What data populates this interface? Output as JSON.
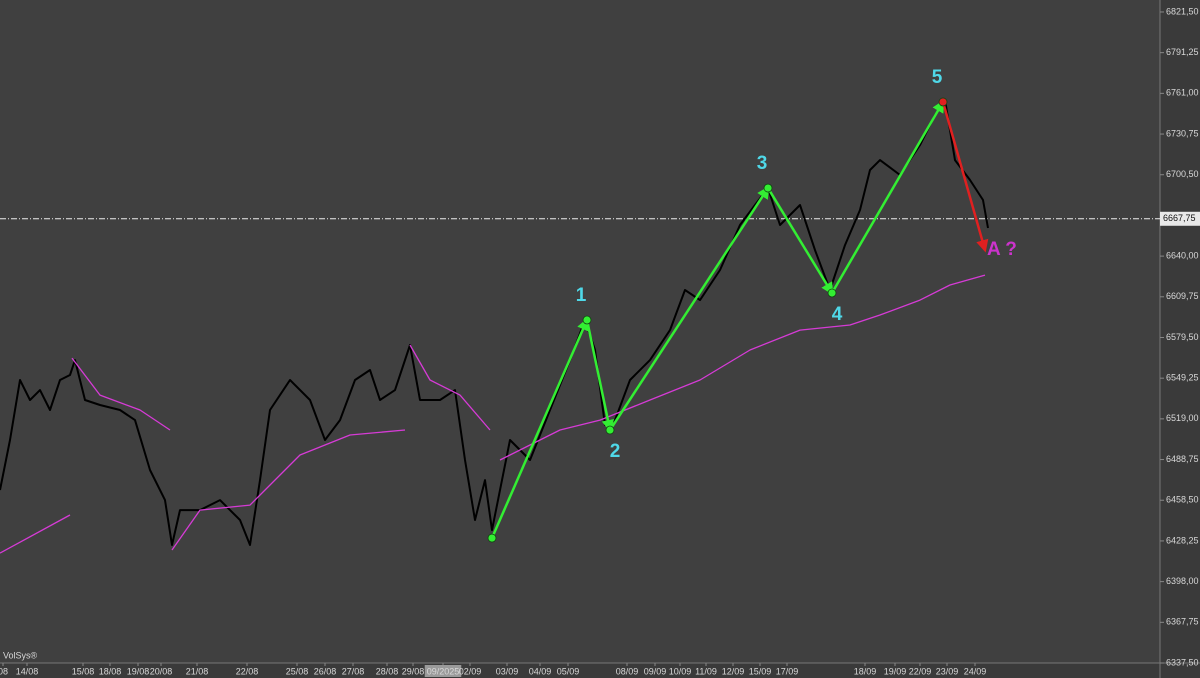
{
  "chart_data": {
    "type": "line",
    "brand": "VolSys®",
    "xlim": [
      0,
      1160
    ],
    "ylim": [
      6337.5,
      6830.4
    ],
    "yticks": [
      {
        "value": 6337.5,
        "label": "6337,50"
      },
      {
        "value": 6367.75,
        "label": "6367,75"
      },
      {
        "value": 6398,
        "label": "6398,00"
      },
      {
        "value": 6428.25,
        "label": "6428,25"
      },
      {
        "value": 6458.5,
        "label": "6458,50"
      },
      {
        "value": 6488.75,
        "label": "6488,75"
      },
      {
        "value": 6519,
        "label": "6519,00"
      },
      {
        "value": 6549.25,
        "label": "6549,25"
      },
      {
        "value": 6579.5,
        "label": "6579,50"
      },
      {
        "value": 6609.75,
        "label": "6609,75"
      },
      {
        "value": 6640,
        "label": "6640,00"
      },
      {
        "value": 6700.5,
        "label": "6700,50"
      },
      {
        "value": 6730.75,
        "label": "6730,75"
      },
      {
        "value": 6761,
        "label": "6761,00"
      },
      {
        "value": 6791.25,
        "label": "6791,25"
      },
      {
        "value": 6821.5,
        "label": "6821,50"
      }
    ],
    "xticks": [
      {
        "value": 3,
        "label": "08"
      },
      {
        "value": 27,
        "label": "14/08"
      },
      {
        "value": 83,
        "label": "15/08"
      },
      {
        "value": 110,
        "label": "18/08"
      },
      {
        "value": 138,
        "label": "19/08"
      },
      {
        "value": 161,
        "label": "20/08"
      },
      {
        "value": 197,
        "label": "21/08"
      },
      {
        "value": 247,
        "label": "22/08"
      },
      {
        "value": 297,
        "label": "25/08"
      },
      {
        "value": 325,
        "label": "26/08"
      },
      {
        "value": 353,
        "label": "27/08"
      },
      {
        "value": 387,
        "label": "28/08"
      },
      {
        "value": 413,
        "label": "29/08"
      },
      {
        "value": 443,
        "label": "09/2025"
      },
      {
        "value": 470,
        "label": "02/09"
      },
      {
        "value": 507,
        "label": "03/09"
      },
      {
        "value": 540,
        "label": "04/09"
      },
      {
        "value": 568,
        "label": "05/09"
      },
      {
        "value": 627,
        "label": "08/09"
      },
      {
        "value": 655,
        "label": "09/09"
      },
      {
        "value": 680,
        "label": "10/09"
      },
      {
        "value": 706,
        "label": "11/09"
      },
      {
        "value": 733,
        "label": "12/09"
      },
      {
        "value": 760,
        "label": "15/09"
      },
      {
        "value": 787,
        "label": "17/09"
      },
      {
        "value": 865,
        "label": "18/09"
      },
      {
        "value": 895,
        "label": "19/09"
      },
      {
        "value": 920,
        "label": "22/09"
      },
      {
        "value": 947,
        "label": "23/09"
      },
      {
        "value": 975,
        "label": "24/09"
      }
    ],
    "series": [
      {
        "color": "#000000",
        "x": [
          0,
          10,
          20,
          30,
          40,
          50,
          60,
          70,
          75,
          85,
          100,
          120,
          135,
          150,
          165,
          172,
          180,
          200,
          220,
          240,
          250,
          260,
          270,
          290,
          310,
          325,
          340,
          355,
          370,
          380,
          395,
          410,
          420,
          440,
          455,
          465,
          475,
          485,
          492,
          510,
          530,
          550,
          570,
          585,
          595,
          605,
          615,
          630,
          650,
          670,
          685,
          700,
          720,
          740,
          755,
          768,
          780,
          800,
          815,
          830,
          845,
          860,
          870,
          880,
          900,
          920,
          935,
          945,
          955,
          970,
          983,
          988
        ],
        "values": [
          6466.1,
          6503.3,
          6547.9,
          6533.0,
          6540.4,
          6525.6,
          6547.9,
          6551.6,
          6562.7,
          6533.0,
          6529.3,
          6525.6,
          6518.1,
          6481.0,
          6458.6,
          6425.2,
          6451.2,
          6451.2,
          6458.6,
          6443.8,
          6425.2,
          6473.5,
          6525.6,
          6547.9,
          6533.0,
          6503.3,
          6518.1,
          6547.9,
          6555.3,
          6533.0,
          6540.4,
          6573.9,
          6533.0,
          6533.0,
          6540.4,
          6488.4,
          6443.8,
          6473.5,
          6436.3,
          6503.3,
          6488.4,
          6525.6,
          6562.7,
          6592.5,
          6570.2,
          6514.4,
          6518.1,
          6547.9,
          6562.7,
          6585.0,
          6614.8,
          6607.3,
          6629.7,
          6663.1,
          6678.0,
          6690.6,
          6663.1,
          6678.0,
          6644.5,
          6614.8,
          6648.2,
          6674.3,
          6704.0,
          6711.4,
          6700.3,
          6722.6,
          6744.9,
          6756.0,
          6711.4,
          6696.6,
          6681.7,
          6660.9
        ]
      },
      {
        "color": "#d63bd6",
        "x": [
          0,
          70,
          71,
          72,
          100,
          140,
          170,
          171,
          172,
          200,
          250,
          300,
          350,
          405,
          407,
          410,
          430,
          460,
          490,
          491,
          500,
          560,
          600,
          650,
          700,
          750,
          800,
          850,
          880,
          920,
          950,
          985
        ],
        "values": [
          6419.2,
          6447.5,
          null,
          6564.2,
          6536.7,
          6525.6,
          6510.7,
          null,
          6421.5,
          6451.2,
          6454.9,
          6492.1,
          6507.0,
          6510.7,
          null,
          6573.9,
          6547.9,
          6536.7,
          6510.7,
          null,
          6488.4,
          6510.7,
          6518.1,
          6533.0,
          6547.9,
          6570.2,
          6585.0,
          6588.8,
          6596.2,
          6607.3,
          6618.5,
          6625.9
        ]
      }
    ],
    "last_price": {
      "value": 6667.75,
      "label": "6667,75"
    },
    "wave": {
      "color": "#33ee33",
      "label_color": "#4fd8e8",
      "x": [
        492,
        587,
        610,
        768,
        832,
        943
      ],
      "values": [
        6430.4,
        6592.5,
        6510.7,
        6690.6,
        6612.6,
        6754.6
      ],
      "labels": [
        null,
        "1",
        "2",
        "3",
        "4",
        "5"
      ]
    },
    "target": {
      "x": 985,
      "value": 6644.5,
      "label": "A ?",
      "color": "#e02020",
      "label_color": "#cc33cc"
    }
  }
}
